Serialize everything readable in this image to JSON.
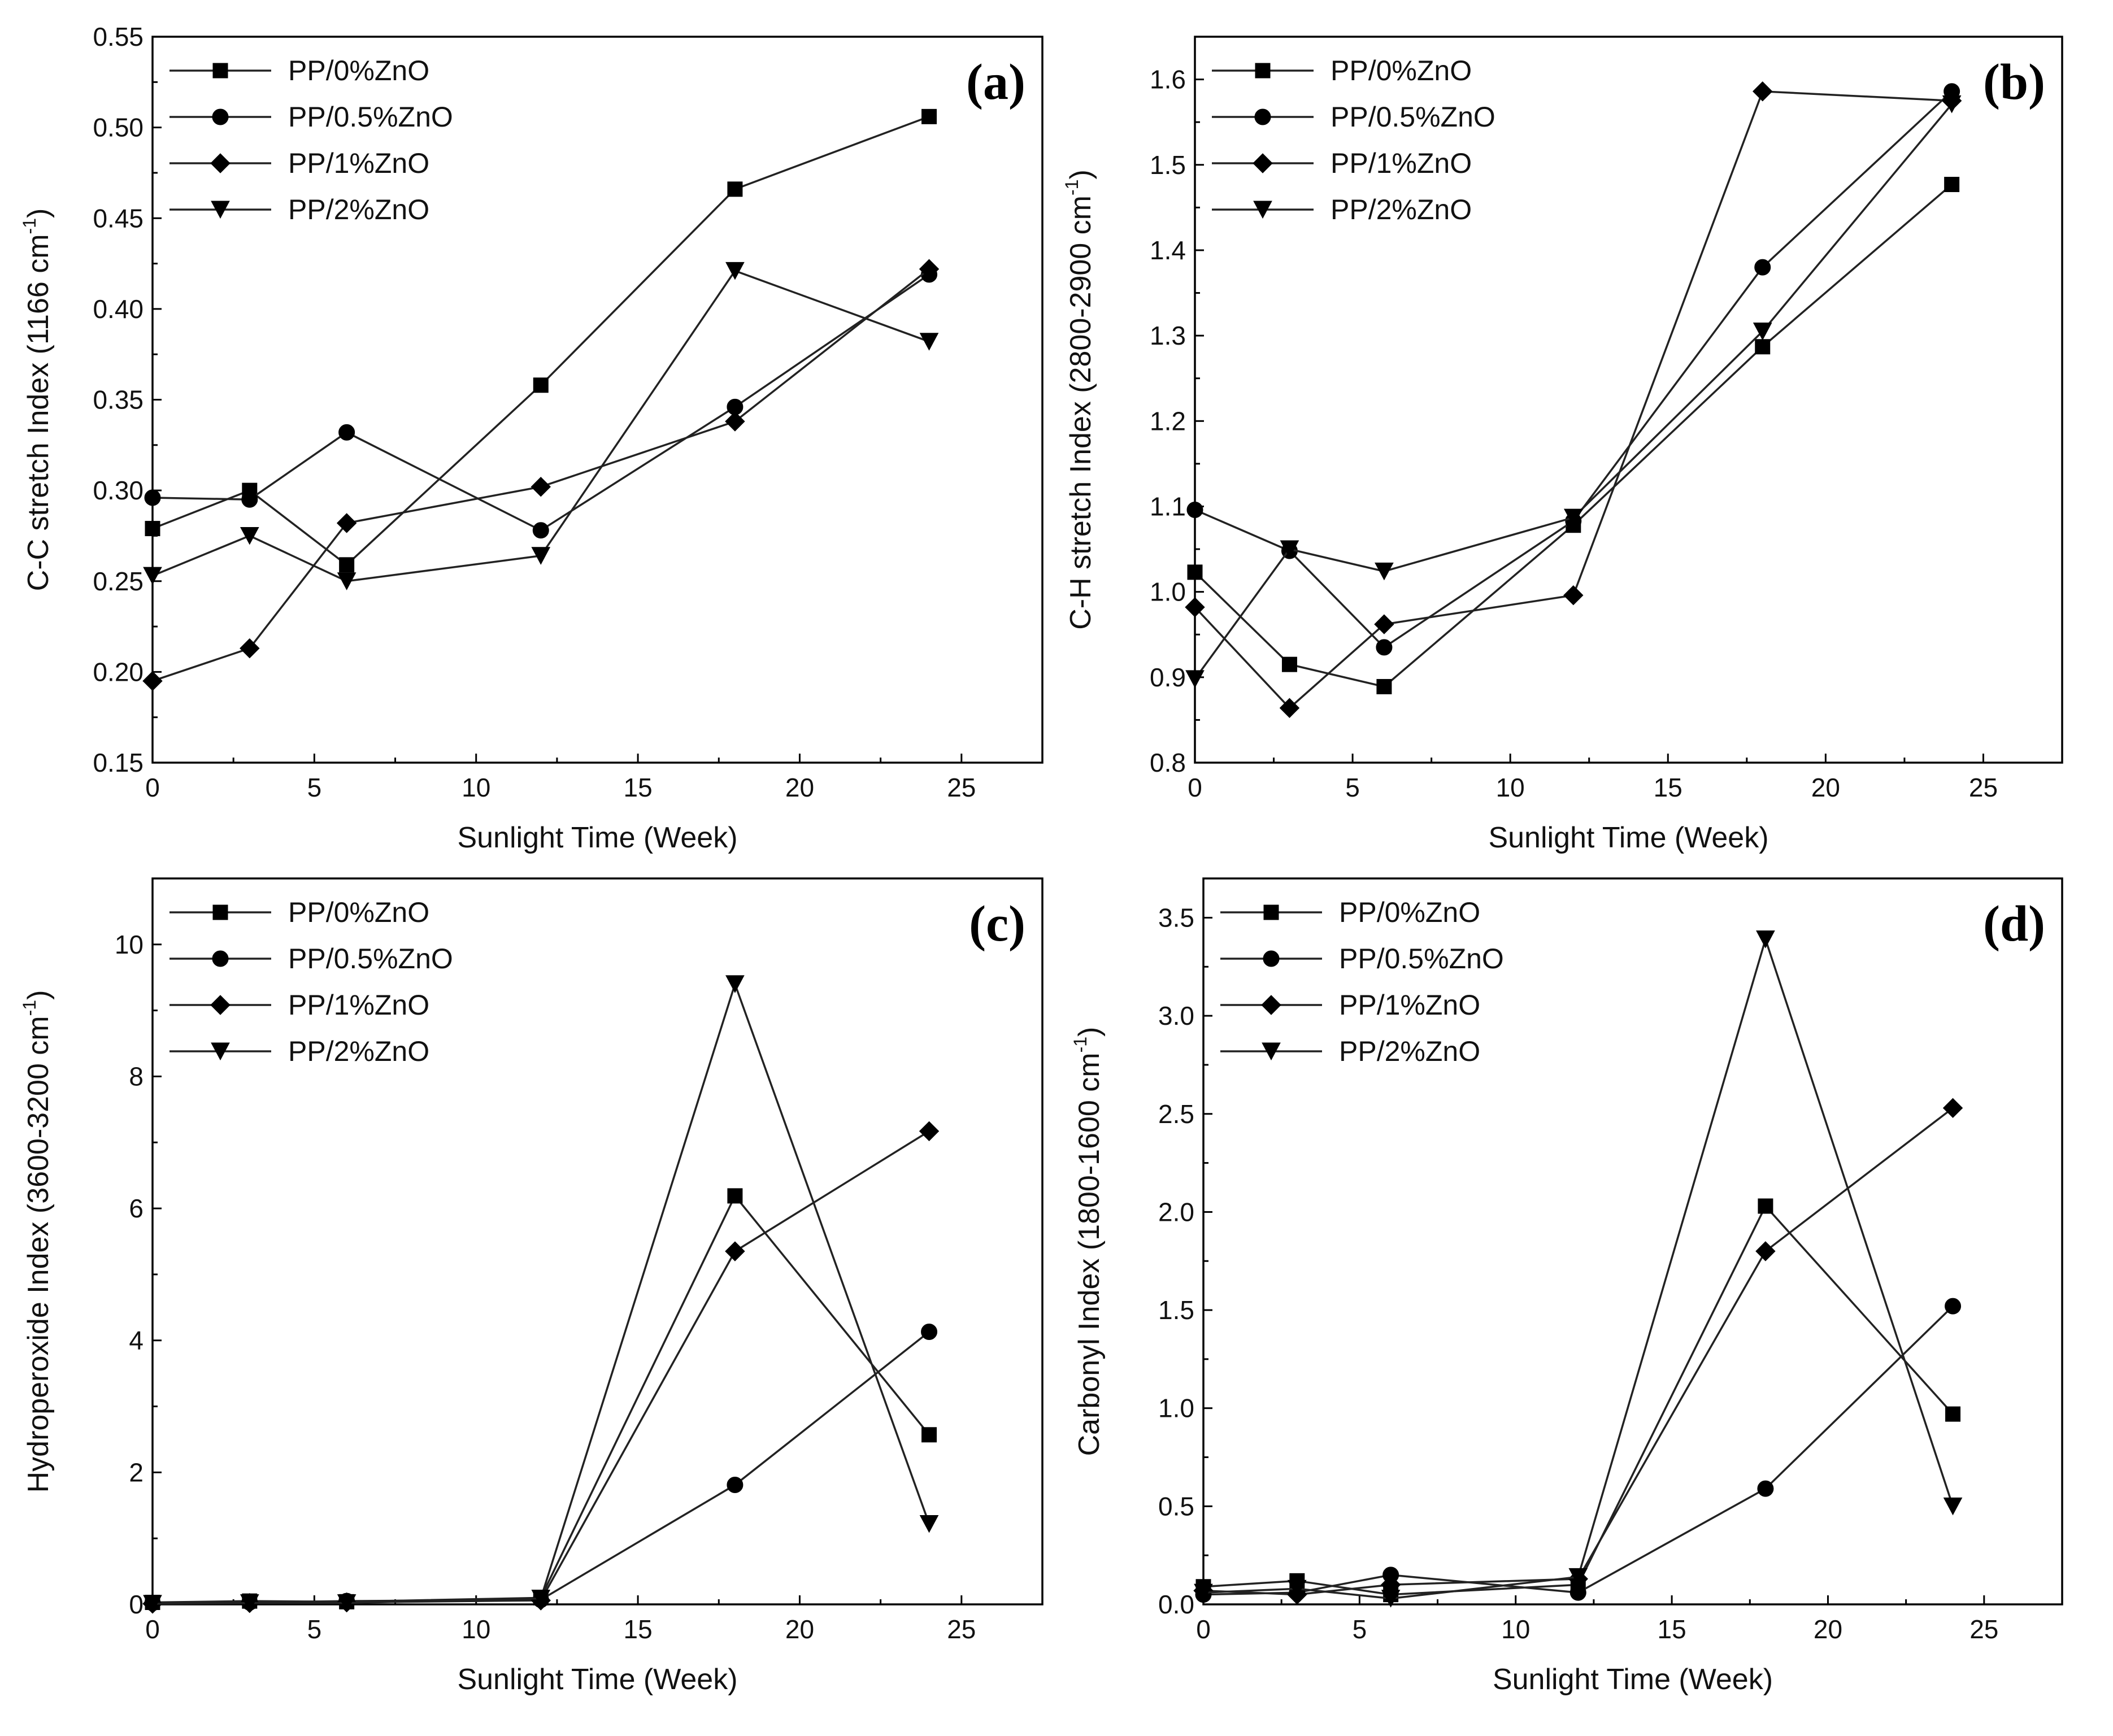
{
  "series_names": [
    "PP/0%ZnO",
    "PP/0.5%ZnO",
    "PP/1%ZnO",
    "PP/2%ZnO"
  ],
  "markers": [
    "square",
    "circle",
    "diamond",
    "triangle-down"
  ],
  "chart_data": [
    {
      "id": "a",
      "type": "line",
      "panel_label": "(a)",
      "xlabel": "Sunlight Time (Week)",
      "ylabel": "C-C stretch Index (1166 cm",
      "ylabel_sup": "-1",
      "ylabel_close": ")",
      "xlim": [
        0,
        27.5
      ],
      "ylim": [
        0.15,
        0.55
      ],
      "xticks": [
        0,
        5,
        10,
        15,
        20,
        25
      ],
      "xtick_labels": [
        "0",
        "5",
        "10",
        "15",
        "20",
        "25"
      ],
      "yticks": [
        0.15,
        0.2,
        0.25,
        0.3,
        0.35,
        0.4,
        0.45,
        0.5,
        0.55
      ],
      "ytick_labels": [
        "0.15",
        "0.20",
        "0.25",
        "0.30",
        "0.35",
        "0.40",
        "0.45",
        "0.50",
        "0.55"
      ],
      "legend": "top-left",
      "x": [
        0,
        3,
        6,
        12,
        18,
        24
      ],
      "series": [
        {
          "name": "PP/0%ZnO",
          "values": [
            0.279,
            0.3,
            0.259,
            0.358,
            0.466,
            0.506
          ]
        },
        {
          "name": "PP/0.5%ZnO",
          "values": [
            0.296,
            0.295,
            0.332,
            0.278,
            0.346,
            0.419
          ]
        },
        {
          "name": "PP/1%ZnO",
          "values": [
            0.195,
            0.213,
            0.282,
            0.302,
            0.338,
            0.422
          ]
        },
        {
          "name": "PP/2%ZnO",
          "values": [
            0.253,
            0.275,
            0.25,
            0.264,
            0.421,
            0.382
          ]
        }
      ]
    },
    {
      "id": "b",
      "type": "line",
      "panel_label": "(b)",
      "xlabel": "Sunlight Time (Week)",
      "ylabel": "C-H stretch Index (2800-2900 cm",
      "ylabel_sup": "-1",
      "ylabel_close": ")",
      "xlim": [
        0,
        27.5
      ],
      "ylim": [
        0.8,
        1.65
      ],
      "xticks": [
        0,
        5,
        10,
        15,
        20,
        25
      ],
      "xtick_labels": [
        "0",
        "5",
        "10",
        "15",
        "20",
        "25"
      ],
      "yticks": [
        0.8,
        0.9,
        1.0,
        1.1,
        1.2,
        1.3,
        1.4,
        1.5,
        1.6
      ],
      "ytick_labels": [
        "0.8",
        "0.9",
        "1.0",
        "1.1",
        "1.2",
        "1.3",
        "1.4",
        "1.5",
        "1.6"
      ],
      "legend": "top-left",
      "x": [
        0,
        3,
        6,
        12,
        18,
        24
      ],
      "series": [
        {
          "name": "PP/0%ZnO",
          "values": [
            1.023,
            0.915,
            0.889,
            1.078,
            1.287,
            1.477
          ]
        },
        {
          "name": "PP/0.5%ZnO",
          "values": [
            1.096,
            1.048,
            0.935,
            1.083,
            1.38,
            1.586
          ]
        },
        {
          "name": "PP/1%ZnO",
          "values": [
            0.982,
            0.864,
            0.962,
            0.996,
            1.586,
            1.575
          ]
        },
        {
          "name": "PP/2%ZnO",
          "values": [
            0.898,
            1.05,
            1.024,
            1.087,
            1.305,
            1.571
          ]
        }
      ]
    },
    {
      "id": "c",
      "type": "line",
      "panel_label": "(c)",
      "xlabel": "Sunlight Time (Week)",
      "ylabel": "Hydroperoxide Index (3600-3200 cm",
      "ylabel_sup": "-1",
      "ylabel_close": ")",
      "xlim": [
        0,
        27.5
      ],
      "ylim": [
        0,
        11
      ],
      "xticks": [
        0,
        5,
        10,
        15,
        20,
        25
      ],
      "xtick_labels": [
        "0",
        "5",
        "10",
        "15",
        "20",
        "25"
      ],
      "yticks": [
        0,
        2,
        4,
        6,
        8,
        10
      ],
      "ytick_labels": [
        "0",
        "2",
        "4",
        "6",
        "8",
        "10"
      ],
      "legend": "top-left",
      "x": [
        0,
        3,
        6,
        12,
        18,
        24
      ],
      "series": [
        {
          "name": "PP/0%ZnO",
          "values": [
            0.03,
            0.05,
            0.04,
            0.1,
            6.19,
            2.57
          ]
        },
        {
          "name": "PP/0.5%ZnO",
          "values": [
            0.02,
            0.03,
            0.05,
            0.07,
            1.81,
            4.13
          ]
        },
        {
          "name": "PP/1%ZnO",
          "values": [
            0.01,
            0.02,
            0.03,
            0.06,
            5.35,
            7.17
          ]
        },
        {
          "name": "PP/2%ZnO",
          "values": [
            0.01,
            0.02,
            0.02,
            0.09,
            9.4,
            1.22
          ]
        }
      ]
    },
    {
      "id": "d",
      "type": "line",
      "panel_label": "(d)",
      "xlabel": "Sunlight Time (Week)",
      "ylabel": "Carbonyl Index (1800-1600 cm",
      "ylabel_sup": "-1",
      "ylabel_close": ")",
      "xlim": [
        0,
        27.5
      ],
      "ylim": [
        0,
        3.7
      ],
      "xticks": [
        0,
        5,
        10,
        15,
        20,
        25
      ],
      "xtick_labels": [
        "0",
        "5",
        "10",
        "15",
        "20",
        "25"
      ],
      "yticks": [
        0,
        0.5,
        1.0,
        1.5,
        2.0,
        2.5,
        3.0,
        3.5
      ],
      "ytick_labels": [
        "0.0",
        "0.5",
        "1.0",
        "1.5",
        "2.0",
        "2.5",
        "3.0",
        "3.5"
      ],
      "legend": "top-left",
      "x": [
        0,
        3,
        6,
        12,
        18,
        24
      ],
      "series": [
        {
          "name": "PP/0%ZnO",
          "values": [
            0.09,
            0.12,
            0.05,
            0.1,
            2.03,
            0.97
          ]
        },
        {
          "name": "PP/0.5%ZnO",
          "values": [
            0.05,
            0.06,
            0.15,
            0.06,
            0.59,
            1.52
          ]
        },
        {
          "name": "PP/1%ZnO",
          "values": [
            0.07,
            0.05,
            0.1,
            0.13,
            1.8,
            2.53
          ]
        },
        {
          "name": "PP/2%ZnO",
          "values": [
            0.06,
            0.08,
            0.03,
            0.14,
            3.39,
            0.5
          ]
        }
      ]
    }
  ]
}
